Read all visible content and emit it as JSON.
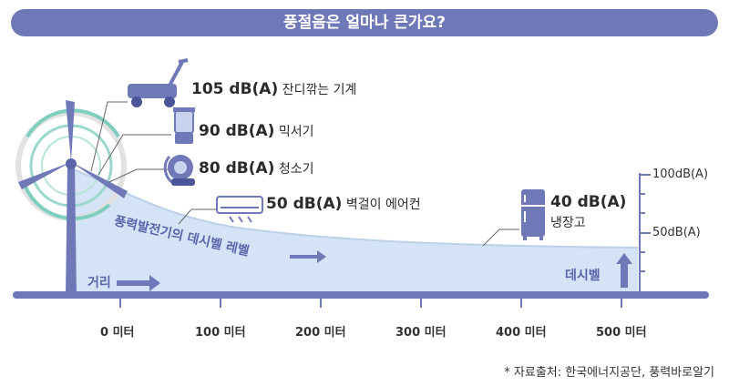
{
  "title": "풍절음은 얼마나 큰가요?",
  "items": [
    {
      "db": "105 dB(A)",
      "name": "잔디깎는 기계",
      "icon": "lawn-mower-icon"
    },
    {
      "db": "90 dB(A)",
      "name": "믹서기",
      "icon": "blender-icon"
    },
    {
      "db": "80 dB(A)",
      "name": "청소기",
      "icon": "vacuum-cleaner-icon"
    },
    {
      "db": "50 dB(A)",
      "name": "벽걸이 에어컨",
      "icon": "air-conditioner-icon"
    },
    {
      "db": "40 dB(A)",
      "name": "냉장고",
      "icon": "refrigerator-icon"
    }
  ],
  "curve_label": "풍력발전기의 데시벨 레벨",
  "x_axis": {
    "label": "거리",
    "ticks": [
      "0 미터",
      "100 미터",
      "200 미터",
      "300 미터",
      "400 미터",
      "500 미터"
    ]
  },
  "y_axis": {
    "label": "데시벨",
    "ticks": [
      "100dB(A)",
      "50dB(A)"
    ]
  },
  "source": "* 자료출처: 한국에너지공단, 풍력바로알기",
  "colors": {
    "accent": "#6f79b8",
    "area": "#d4e3f5",
    "teal": "#7fcfc0",
    "axis": "#6f79b8"
  }
}
